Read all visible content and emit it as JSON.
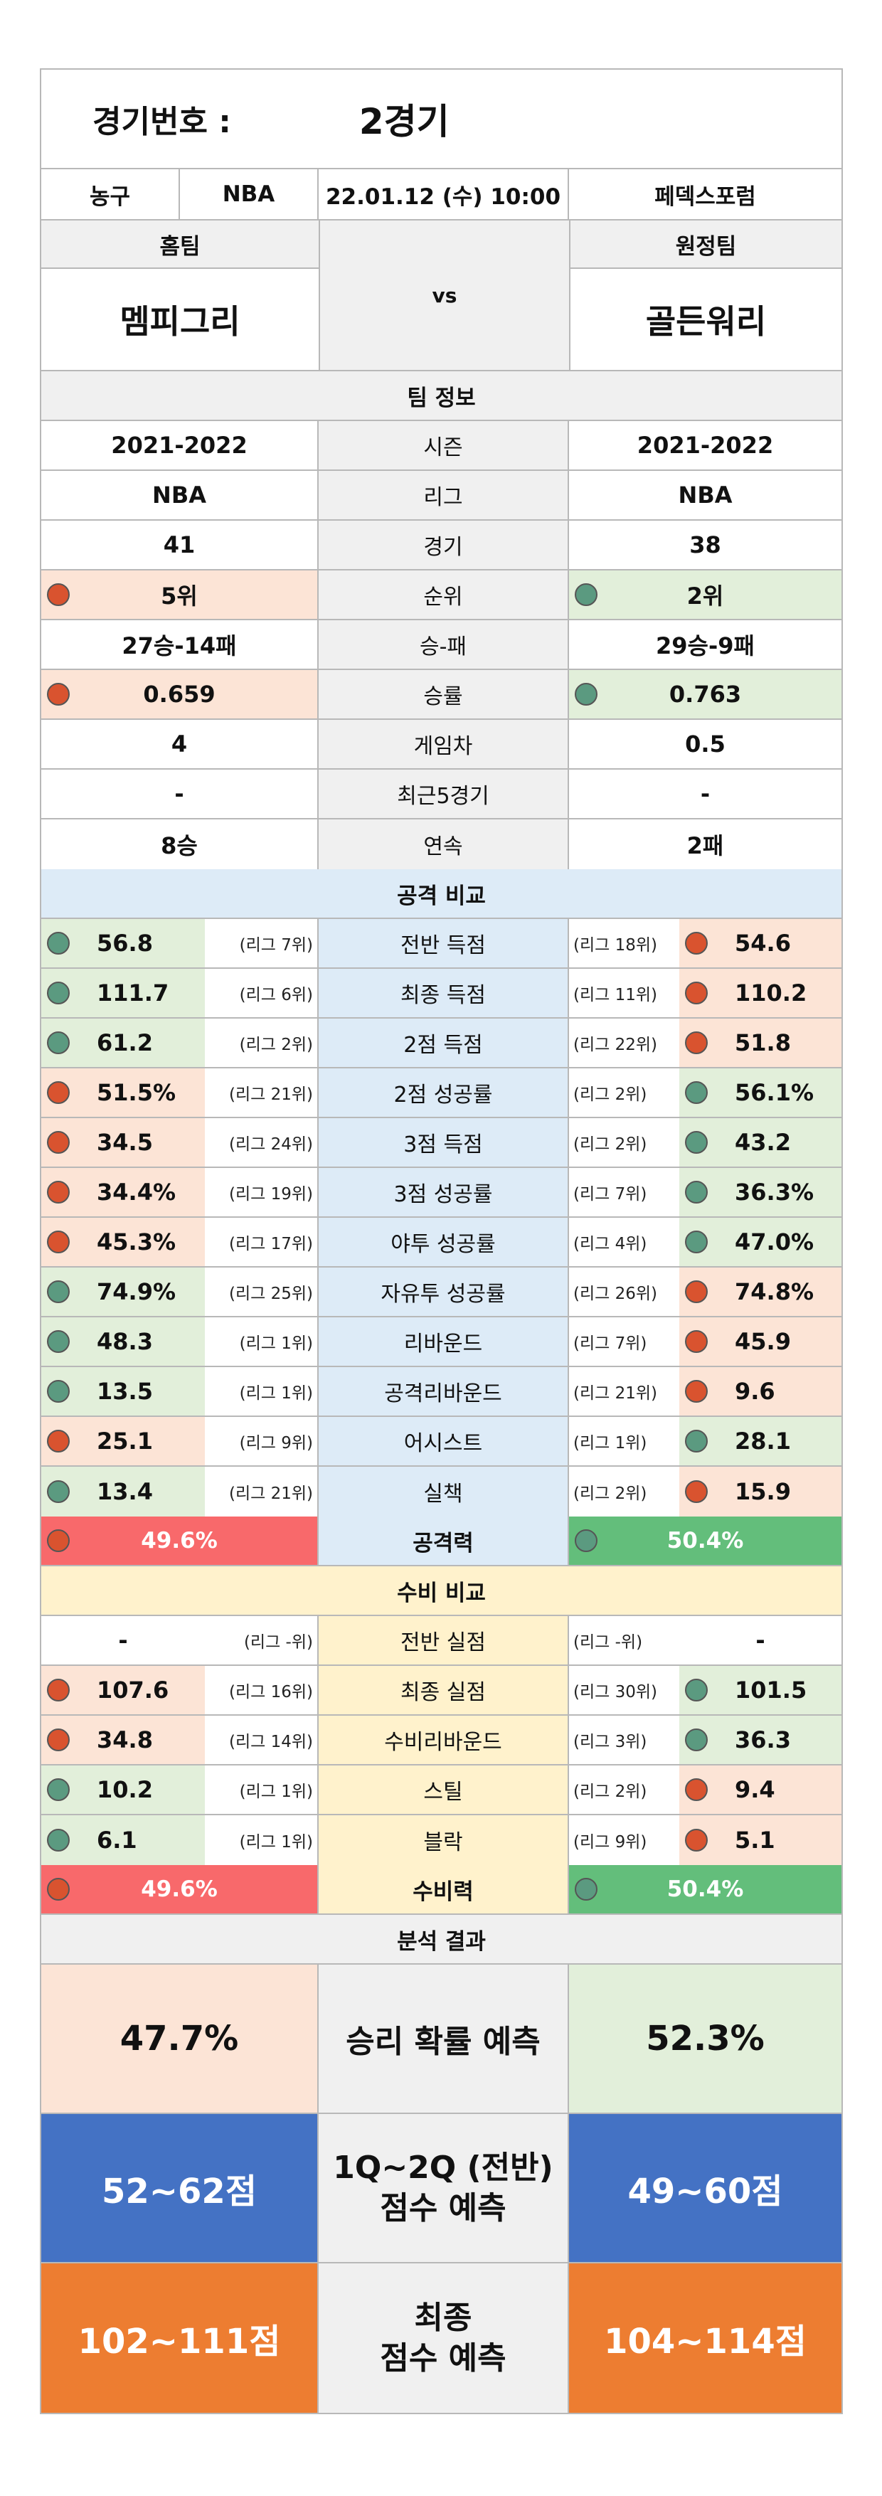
{
  "match": {
    "label": "경기번호 :",
    "value": "2경기"
  },
  "info": {
    "sport": "농구",
    "league": "NBA",
    "datetime": "22.01.12 (수) 10:00",
    "venue": "페덱스포럼"
  },
  "teams": {
    "home_label": "홈팀",
    "away_label": "원정팀",
    "home": "멤피그리",
    "away": "골든워리",
    "vs": "vs"
  },
  "team_info": {
    "title": "팀 정보",
    "rows": [
      {
        "label": "시즌",
        "home": "2021-2022",
        "away": "2021-2022"
      },
      {
        "label": "리그",
        "home": "NBA",
        "away": "NBA"
      },
      {
        "label": "경기",
        "home": "41",
        "away": "38"
      },
      {
        "label": "순위",
        "home": "5위",
        "away": "2위"
      },
      {
        "label": "승-패",
        "home": "27승-14패",
        "away": "29승-9패"
      },
      {
        "label": "승률",
        "home": "0.659",
        "away": "0.763"
      },
      {
        "label": "게임차",
        "home": "4",
        "away": "0.5"
      },
      {
        "label": "최근5경기",
        "home": "-",
        "away": "-"
      },
      {
        "label": "연속",
        "home": "8승",
        "away": "2패"
      }
    ]
  },
  "attack": {
    "title": "공격 비교",
    "rows": [
      {
        "label": "전반 득점",
        "home": "56.8",
        "home_rank": "(리그 7위)",
        "away": "54.6",
        "away_rank": "(리그 18위)"
      },
      {
        "label": "최종 득점",
        "home": "111.7",
        "home_rank": "(리그 6위)",
        "away": "110.2",
        "away_rank": "(리그 11위)"
      },
      {
        "label": "2점 득점",
        "home": "61.2",
        "home_rank": "(리그 2위)",
        "away": "51.8",
        "away_rank": "(리그 22위)"
      },
      {
        "label": "2점 성공률",
        "home": "51.5%",
        "home_rank": "(리그 21위)",
        "away": "56.1%",
        "away_rank": "(리그 2위)"
      },
      {
        "label": "3점 득점",
        "home": "34.5",
        "home_rank": "(리그 24위)",
        "away": "43.2",
        "away_rank": "(리그 2위)"
      },
      {
        "label": "3점 성공률",
        "home": "34.4%",
        "home_rank": "(리그 19위)",
        "away": "36.3%",
        "away_rank": "(리그 7위)"
      },
      {
        "label": "야투 성공률",
        "home": "45.3%",
        "home_rank": "(리그 17위)",
        "away": "47.0%",
        "away_rank": "(리그 4위)"
      },
      {
        "label": "자유투 성공률",
        "home": "74.9%",
        "home_rank": "(리그 25위)",
        "away": "74.8%",
        "away_rank": "(리그 26위)"
      },
      {
        "label": "리바운드",
        "home": "48.3",
        "home_rank": "(리그 1위)",
        "away": "45.9",
        "away_rank": "(리그 7위)"
      },
      {
        "label": "공격리바운드",
        "home": "13.5",
        "home_rank": "(리그 1위)",
        "away": "9.6",
        "away_rank": "(리그 21위)"
      },
      {
        "label": "어시스트",
        "home": "25.1",
        "home_rank": "(리그 9위)",
        "away": "28.1",
        "away_rank": "(리그 1위)"
      },
      {
        "label": "실책",
        "home": "13.4",
        "home_rank": "(리그 21위)",
        "away": "15.9",
        "away_rank": "(리그 2위)"
      }
    ],
    "power": {
      "label": "공격력",
      "home": "49.6%",
      "away": "50.4%"
    }
  },
  "defense": {
    "title": "수비 비교",
    "rows": [
      {
        "label": "전반 실점",
        "home": "-",
        "home_rank": "(리그 -위)",
        "away": "-",
        "away_rank": "(리그 -위)"
      },
      {
        "label": "최종 실점",
        "home": "107.6",
        "home_rank": "(리그 16위)",
        "away": "101.5",
        "away_rank": "(리그 30위)"
      },
      {
        "label": "수비리바운드",
        "home": "34.8",
        "home_rank": "(리그 14위)",
        "away": "36.3",
        "away_rank": "(리그 3위)"
      },
      {
        "label": "스틸",
        "home": "10.2",
        "home_rank": "(리그 1위)",
        "away": "9.4",
        "away_rank": "(리그 2위)"
      },
      {
        "label": "블락",
        "home": "6.1",
        "home_rank": "(리그 1위)",
        "away": "5.1",
        "away_rank": "(리그 9위)"
      }
    ],
    "power": {
      "label": "수비력",
      "home": "49.6%",
      "away": "50.4%"
    }
  },
  "analysis": {
    "title": "분석 결과",
    "win": {
      "label": "승리 확률 예측",
      "home": "47.7%",
      "away": "52.3%"
    },
    "half": {
      "label_line1": "1Q~2Q (전반)",
      "label_line2": "점수 예측",
      "home": "52~62점",
      "away": "49~60점"
    },
    "final": {
      "label_line1": "최종",
      "label_line2": "점수 예측",
      "home": "102~111점",
      "away": "104~114점"
    }
  }
}
